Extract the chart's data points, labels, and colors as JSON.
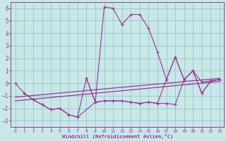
{
  "xlabel": "Windchill (Refroidissement éolien,°C)",
  "background_color": "#c8e8e8",
  "grid_color": "#a0c8c8",
  "line_color": "#993399",
  "xlim": [
    -0.5,
    23.5
  ],
  "ylim": [
    -3.5,
    6.5
  ],
  "yticks": [
    -3,
    -2,
    -1,
    0,
    1,
    2,
    3,
    4,
    5,
    6
  ],
  "xticks": [
    0,
    1,
    2,
    3,
    4,
    5,
    6,
    7,
    8,
    9,
    10,
    11,
    12,
    13,
    14,
    15,
    16,
    17,
    18,
    19,
    20,
    21,
    22,
    23
  ],
  "series1_x": [
    0,
    1,
    2,
    3,
    4,
    5,
    6,
    7,
    9,
    10,
    11,
    12,
    13,
    14,
    15,
    16,
    17,
    18,
    19,
    20,
    21,
    22,
    23
  ],
  "series1_y": [
    0.0,
    -0.8,
    -1.3,
    -1.7,
    -2.1,
    -2.0,
    -2.5,
    -2.7,
    -1.5,
    6.1,
    6.0,
    4.7,
    5.5,
    5.5,
    4.4,
    2.5,
    0.3,
    2.1,
    0.3,
    1.0,
    -0.8,
    0.2,
    0.3
  ],
  "series2_x": [
    1,
    2,
    3,
    4,
    5,
    6,
    7,
    8,
    9,
    10,
    11,
    12,
    13,
    14,
    15,
    16,
    17,
    18,
    19,
    20,
    21,
    22,
    23
  ],
  "series2_y": [
    -0.8,
    -1.3,
    -1.7,
    -2.1,
    -2.0,
    -2.5,
    -2.7,
    0.4,
    -1.5,
    -1.4,
    -1.4,
    -1.4,
    -1.5,
    -1.6,
    -1.5,
    -1.6,
    -1.6,
    -1.7,
    0.3,
    1.0,
    0.1,
    0.2,
    0.3
  ],
  "trend1_x": [
    0,
    23
  ],
  "trend1_y": [
    -1.1,
    0.4
  ],
  "trend2_x": [
    0,
    23
  ],
  "trend2_y": [
    -1.4,
    0.15
  ],
  "series3_x": [
    8,
    9,
    10,
    11,
    12,
    13,
    14,
    15,
    16,
    17,
    18,
    19,
    20,
    21,
    22,
    23
  ],
  "series3_y": [
    0.4,
    -1.5,
    -1.4,
    -1.4,
    -1.4,
    -1.5,
    -1.6,
    -1.5,
    -1.6,
    0.3,
    2.1,
    0.3,
    1.0,
    -0.8,
    0.2,
    0.3
  ]
}
